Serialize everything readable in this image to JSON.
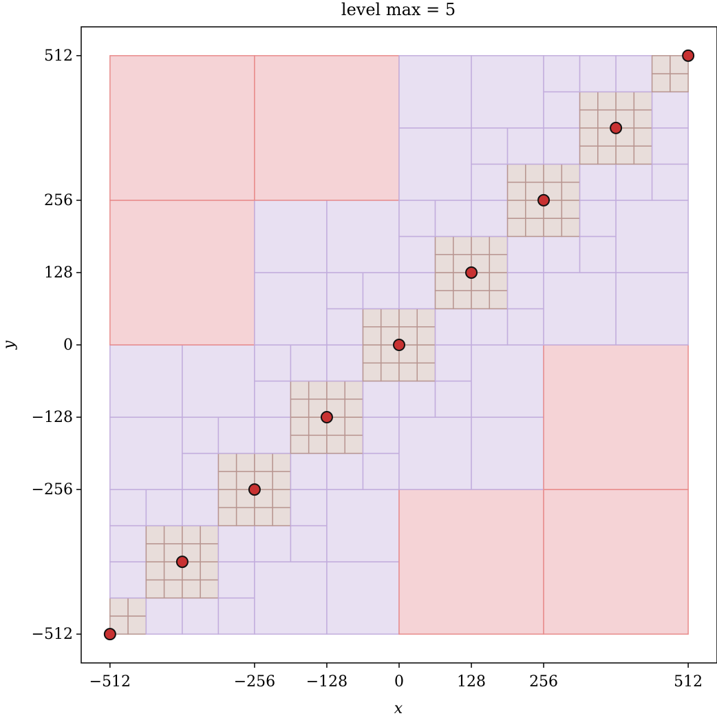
{
  "chart_data": {
    "type": "scatter",
    "title": "level max = 5",
    "xlabel": "x",
    "ylabel": "y",
    "xlim": [
      -563,
      563
    ],
    "ylim": [
      -563,
      563
    ],
    "xticks": [
      -512,
      -256,
      -128,
      0,
      128,
      256,
      512
    ],
    "xtick_labels": [
      "−512",
      "−256",
      "−128",
      "0",
      "128",
      "256",
      "512"
    ],
    "yticks": [
      -512,
      -256,
      -128,
      0,
      128,
      256,
      512
    ],
    "ytick_labels": [
      "−512",
      "−256",
      "−128",
      "0",
      "128",
      "256",
      "512"
    ],
    "grid": false,
    "points": {
      "x": [
        -512,
        -384,
        -256,
        -128,
        0,
        128,
        256,
        384,
        512
      ],
      "y": [
        -512,
        -384,
        -256,
        -128,
        0,
        128,
        256,
        384,
        512
      ]
    },
    "quadtree": {
      "root": [
        -512,
        -512,
        1024
      ],
      "max_level": 5
    },
    "colors": {
      "points_fill": "#c83232",
      "level1_fill": "#d4ebd4",
      "level1_edge": "#8fcc8f",
      "level2_fill": "#f5d3d6",
      "level2_edge": "#e88a8a",
      "level3_fill": "#e8e0f2",
      "level3_edge": "#c2addd",
      "level4_fill": "#e8e0f2",
      "level4_edge": "#c2addd",
      "level5_fill": "#e8ddda",
      "level5_edge": "#b89590"
    }
  }
}
